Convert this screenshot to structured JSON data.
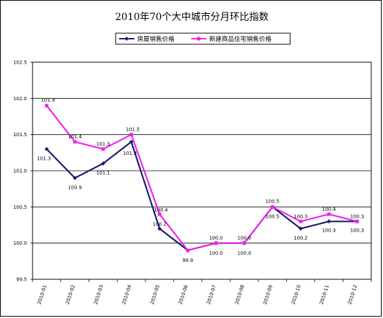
{
  "chart_data": {
    "type": "line",
    "title": "2010年70个大中城市分月环比指数",
    "categories": [
      "2010-01",
      "2010-02",
      "2010-03",
      "2010-04",
      "2010-05",
      "2010-06",
      "2010-07",
      "2010-08",
      "2010-09",
      "2010-10",
      "2010-11",
      "2010-12"
    ],
    "ylim": [
      99.5,
      102.5
    ],
    "yticks": [
      "102.5",
      "102.0",
      "101.5",
      "101.0",
      "100.5",
      "100.0",
      "99.5"
    ],
    "grid": true,
    "legend_position": "top",
    "series": [
      {
        "name": "房屋销售价格",
        "color": "#1a1a6e",
        "marker": "diamond",
        "values": [
          101.3,
          100.9,
          101.1,
          101.4,
          100.2,
          99.9,
          100.0,
          100.0,
          100.5,
          100.2,
          100.3,
          100.3
        ],
        "labels": [
          "101.3",
          "100.9",
          "101.1",
          "101.4",
          "100.2",
          "99.9",
          "100.0",
          "100.0",
          "100.5",
          "100.2",
          "100.3",
          "100.3"
        ]
      },
      {
        "name": "新建商品住宅销售价格",
        "color": "#ee22ee",
        "marker": "square",
        "values": [
          101.9,
          101.4,
          101.3,
          101.5,
          100.4,
          99.9,
          100.0,
          100.0,
          100.5,
          100.3,
          100.4,
          100.3
        ],
        "labels": [
          "101.9",
          "101.4",
          "101.3",
          "101.5",
          "100.4",
          "",
          "100.0",
          "100.0",
          "100.5",
          "100.3",
          "100.4",
          "100.3"
        ]
      }
    ]
  }
}
